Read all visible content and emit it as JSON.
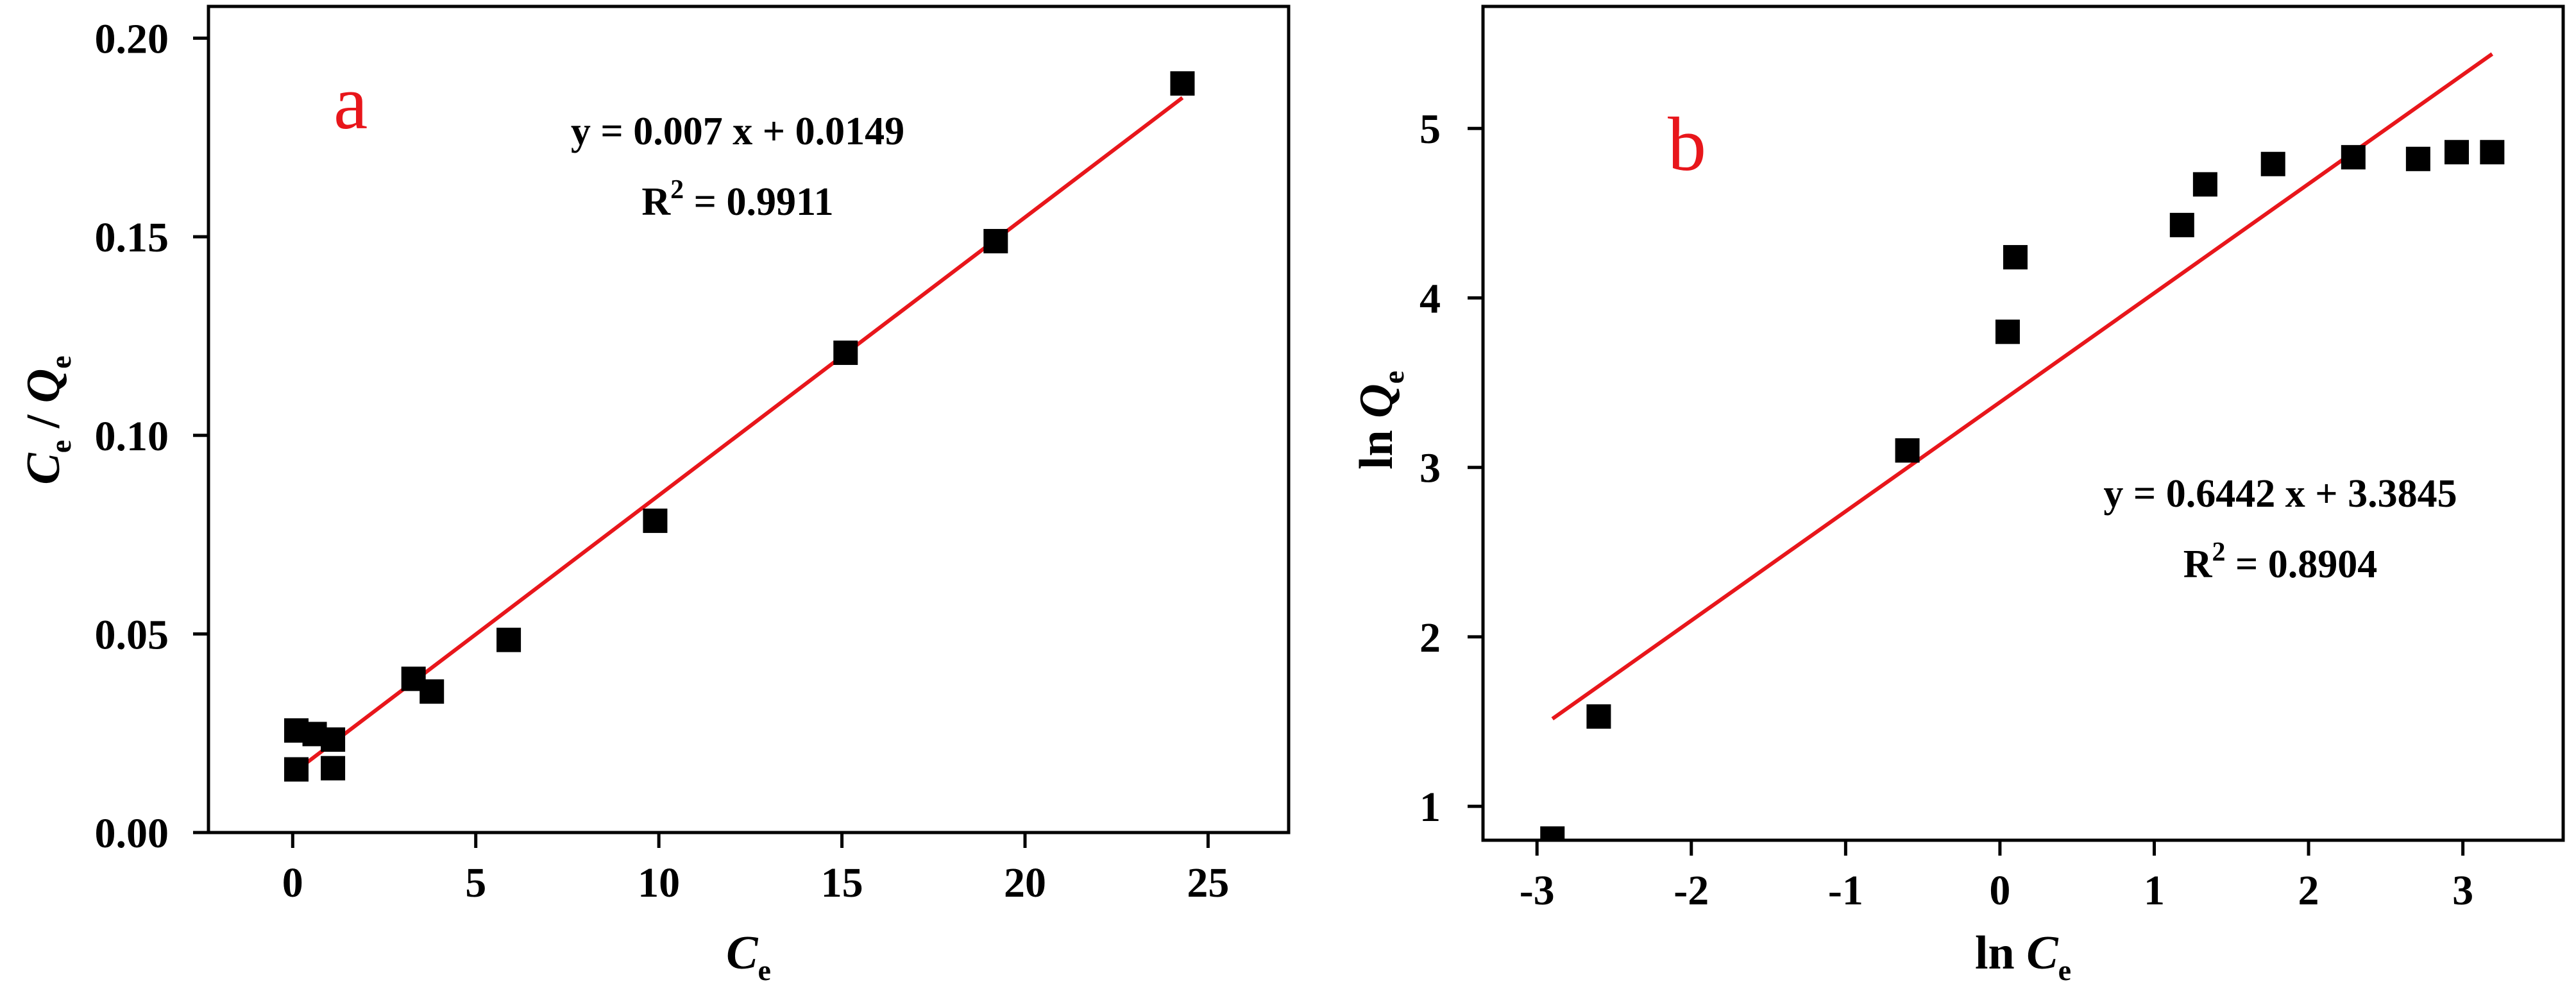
{
  "chart_data": [
    {
      "type": "scatter",
      "panel_label": "a",
      "xlabel": {
        "base": "C",
        "sub": "e"
      },
      "ylabel": {
        "base1": "C",
        "sub1": "e",
        "sep": " / ",
        "base2": "Q",
        "sub2": "e"
      },
      "xlim": [
        -2.3,
        27.2
      ],
      "ylim": [
        0.0,
        0.208
      ],
      "xticks": [
        0,
        5,
        10,
        15,
        20,
        25
      ],
      "xtick_labels": [
        "0",
        "5",
        "10",
        "15",
        "20",
        "25"
      ],
      "yticks": [
        0.0,
        0.05,
        0.1,
        0.15,
        0.2
      ],
      "ytick_labels": [
        "0.00",
        "0.05",
        "0.10",
        "0.15",
        "0.20"
      ],
      "x": [
        0.1,
        0.1,
        0.6,
        1.1,
        1.1,
        3.3,
        3.8,
        5.9,
        9.9,
        15.1,
        19.2,
        24.3
      ],
      "y": [
        0.0159,
        0.0257,
        0.0248,
        0.0234,
        0.0162,
        0.0387,
        0.0355,
        0.0485,
        0.0785,
        0.1208,
        0.1489,
        0.1886
      ],
      "fit_line": {
        "slope": 0.007,
        "intercept": 0.0149,
        "x_range": [
          0.1,
          24.3
        ]
      },
      "equation": "y = 0.007 x + 0.0149",
      "r2_label": "R",
      "r2_sup": "2",
      "r2_value": " = 0.9911",
      "marker_color": "#000000",
      "line_color": "#e8161b",
      "grid": false,
      "legend": "none"
    },
    {
      "type": "scatter",
      "panel_label": "b",
      "xlabel": {
        "prefix": "ln ",
        "base": "C",
        "sub": "e"
      },
      "ylabel": {
        "prefix": "ln ",
        "base": "Q",
        "sub": "e"
      },
      "xlim": [
        -3.35,
        3.65
      ],
      "ylim": [
        0.8,
        5.72
      ],
      "xticks": [
        -3,
        -2,
        -1,
        0,
        1,
        2,
        3
      ],
      "xtick_labels": [
        "-3",
        "-2",
        "-1",
        "0",
        "1",
        "2",
        "3"
      ],
      "yticks": [
        1,
        2,
        3,
        4,
        5
      ],
      "ytick_labels": [
        "1",
        "2",
        "3",
        "4",
        "5"
      ],
      "x": [
        -2.9,
        -2.6,
        -0.6,
        0.05,
        0.1,
        1.18,
        1.33,
        1.77,
        2.29,
        2.71,
        2.96,
        3.19
      ],
      "y": [
        0.81,
        1.53,
        3.1,
        3.8,
        4.24,
        4.43,
        4.67,
        4.79,
        4.83,
        4.82,
        4.86,
        4.86
      ],
      "fit_line": {
        "slope": 0.6442,
        "intercept": 3.3845,
        "x_range": [
          -2.9,
          3.19
        ]
      },
      "equation": "y = 0.6442 x + 3.3845",
      "r2_label": "R",
      "r2_sup": "2",
      "r2_value": " = 0.8904",
      "marker_color": "#000000",
      "line_color": "#e8161b",
      "grid": false,
      "legend": "none"
    }
  ],
  "colors": {
    "panel_label": "#e8161b",
    "axes": "#000000",
    "background": "#ffffff"
  }
}
